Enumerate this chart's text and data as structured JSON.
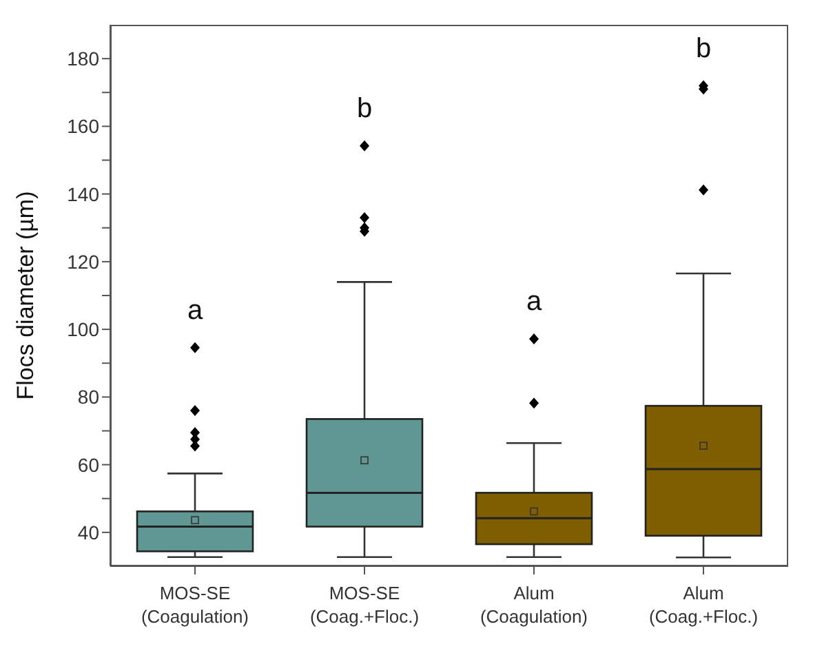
{
  "chart_data": {
    "type": "box",
    "ylabel": "Flocs diameter (µm)",
    "categories": [
      "MOS-SE\n(Coagulation)",
      "MOS-SE\n(Coag.+Floc.)",
      "Alum\n(Coagulation)",
      "Alum\n(Coag.+Floc.)"
    ],
    "colors": [
      "#5f9793",
      "#5f9793",
      "#7f5e00",
      "#7f5e00"
    ],
    "boxes": [
      {
        "low": 32.7,
        "q1": 34.4,
        "median": 41.7,
        "q3": 46.2,
        "high": 57.4,
        "mean": 43.6,
        "outliers": [
          94.6,
          76,
          69.5,
          67.5,
          65.5
        ]
      },
      {
        "low": 32.7,
        "q1": 41.7,
        "median": 51.7,
        "q3": 73.5,
        "high": 114,
        "mean": 61.3,
        "outliers": [
          154.2,
          133,
          130,
          129
        ]
      },
      {
        "low": 32.7,
        "q1": 36.5,
        "median": 44.2,
        "q3": 51.7,
        "high": 66.4,
        "mean": 46.2,
        "outliers": [
          97.2,
          78.2
        ]
      },
      {
        "low": 32.6,
        "q1": 39,
        "median": 58.7,
        "q3": 77.4,
        "high": 116.5,
        "mean": 65.6,
        "outliers": [
          172,
          171,
          141.2
        ]
      }
    ],
    "ylim": [
      30,
      190
    ],
    "yticks": [
      40,
      {
        "value": 50,
        "label": null
      },
      60,
      {
        "value": 70,
        "label": null
      },
      80,
      {
        "value": 90,
        "label": null
      },
      100,
      {
        "value": 110,
        "label": null
      },
      120,
      {
        "value": 130,
        "label": null
      },
      140,
      {
        "value": 150,
        "label": null
      },
      160,
      {
        "value": 170,
        "label": null
      },
      180
    ],
    "annotations": [
      "a",
      "b",
      "a",
      "b"
    ],
    "marker": "diamond"
  }
}
